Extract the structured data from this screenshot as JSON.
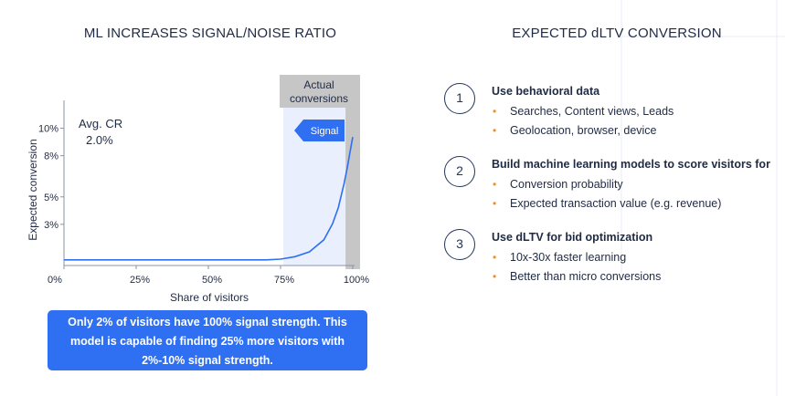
{
  "left_panel": {
    "title": "ML INCREASES SIGNAL/NOISE RATIO",
    "callout": "Only 2% of visitors have 100% signal strength. This model is capable of finding 25% more visitors with 2%-10% signal strength."
  },
  "chart_data": {
    "type": "line",
    "title": "ML INCREASES SIGNAL/NOISE RATIO",
    "xlabel": "Share of visitors",
    "ylabel": "Expected conversion",
    "x_ticks": [
      "0%",
      "25%",
      "50%",
      "75%",
      "100%"
    ],
    "y_ticks": [
      "3%",
      "5%",
      "8%",
      "10%"
    ],
    "xlim": [
      0,
      100
    ],
    "ylim": [
      0,
      10
    ],
    "series": [
      {
        "x": [
          0,
          70,
          75,
          80,
          85,
          90,
          93,
          95,
          97,
          98,
          99,
          100
        ],
        "y": [
          0.35,
          0.35,
          0.4,
          0.55,
          0.85,
          1.6,
          2.6,
          3.6,
          5.1,
          6.0,
          7.0,
          8.0
        ]
      }
    ],
    "annotations": {
      "avg_cr_label": "Avg. CR",
      "avg_cr_value": "2.0%",
      "actual_label": "Actual conversions",
      "signal_label": "Signal"
    },
    "highlight_region_x": [
      76,
      100
    ],
    "actual_region_x": [
      97.5,
      100
    ],
    "colors": {
      "line": "#2f6ff2",
      "signal_fill": "#e9effd",
      "actual_bar": "#c6c6c6",
      "signal_arrow": "#2f6ff2"
    },
    "grid": false
  },
  "right_panel": {
    "title": "EXPECTED dLTV CONVERSION",
    "steps": [
      {
        "number": "1",
        "title": "Use behavioral data",
        "items": [
          "Searches, Content views, Leads",
          "Geolocation, browser, device"
        ]
      },
      {
        "number": "2",
        "title": "Build machine learning models to score visitors for",
        "items": [
          "Conversion probability",
          "Expected transaction value (e.g. revenue)"
        ]
      },
      {
        "number": "3",
        "title": "Use dLTV for bid optimization",
        "items": [
          "10x-30x faster learning",
          "Better than micro conversions"
        ]
      }
    ],
    "bullet_char": "•",
    "bullet_color": "#f28c28"
  }
}
